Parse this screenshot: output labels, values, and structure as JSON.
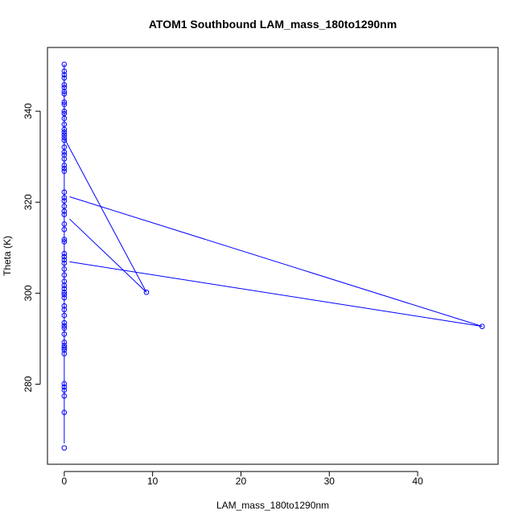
{
  "chart_data": {
    "type": "scatter",
    "title": "ATOM1 Southbound LAM_mass_180to1290nm",
    "xlabel": "LAM_mass_180to1290nm",
    "ylabel": "Theta (K)",
    "xlim": [
      -1.9,
      49.1
    ],
    "ylim": [
      262.4,
      354.0
    ],
    "xticks": [
      0,
      10,
      20,
      30,
      40
    ],
    "yticks": [
      280,
      300,
      320,
      340
    ],
    "grid": false,
    "legend": "none",
    "point_style": "open-circle",
    "colors": {
      "series": "#0000ff",
      "axis": "#000000",
      "background": "#ffffff"
    },
    "series": [
      {
        "values": [
          [
            0,
            266.0
          ],
          [
            0,
            273.8
          ],
          [
            0,
            277.4
          ],
          [
            0,
            278.7
          ],
          [
            0,
            279.4
          ],
          [
            0,
            280.1
          ],
          [
            0,
            286.7
          ],
          [
            0,
            287.5
          ],
          [
            0,
            288.0
          ],
          [
            0,
            288.5
          ],
          [
            0,
            289.2
          ],
          [
            0,
            291.0
          ],
          [
            0,
            292.3
          ],
          [
            0,
            292.8
          ],
          [
            0,
            293.5
          ],
          [
            0,
            295.1
          ],
          [
            0,
            296.4
          ],
          [
            0,
            297.2
          ],
          [
            0,
            299.0
          ],
          [
            0,
            299.7
          ],
          [
            0,
            300.2
          ],
          [
            0,
            301.0
          ],
          [
            0,
            301.7
          ],
          [
            0,
            302.6
          ],
          [
            0,
            304.0
          ],
          [
            0,
            305.3
          ],
          [
            0,
            306.6
          ],
          [
            0,
            307.3
          ],
          [
            0,
            308.0
          ],
          [
            0,
            308.7
          ],
          [
            0,
            311.3
          ],
          [
            0,
            311.8
          ],
          [
            0,
            314.0
          ],
          [
            0,
            315.2
          ],
          [
            0,
            317.3
          ],
          [
            0,
            318.0
          ],
          [
            0,
            319.1
          ],
          [
            0,
            320.3
          ],
          [
            0,
            321.0
          ],
          [
            0,
            322.2
          ],
          [
            0,
            326.8
          ],
          [
            0,
            327.4
          ],
          [
            0,
            328.1
          ],
          [
            0,
            329.5
          ],
          [
            0,
            330.4
          ],
          [
            0,
            331.0
          ],
          [
            0,
            332.1
          ],
          [
            0,
            333.6
          ],
          [
            0,
            334.2
          ],
          [
            0,
            334.8
          ],
          [
            0,
            335.4
          ],
          [
            0,
            336.0
          ],
          [
            0,
            337.1
          ],
          [
            0,
            338.4
          ],
          [
            0,
            339.5
          ],
          [
            0,
            340.0
          ],
          [
            0,
            341.5
          ],
          [
            0,
            342.0
          ],
          [
            0,
            343.8
          ],
          [
            0,
            344.3
          ],
          [
            0,
            345.2
          ],
          [
            0,
            345.8
          ],
          [
            0,
            347.3
          ],
          [
            0,
            348.0
          ],
          [
            0,
            348.8
          ],
          [
            0,
            350.3
          ],
          [
            9.3,
            300.2
          ],
          [
            47.3,
            292.7
          ]
        ]
      }
    ],
    "connecting_lines": [
      [
        [
          0,
          267.0
        ],
        [
          0,
          350.3
        ]
      ],
      [
        [
          0.1,
          333.7
        ],
        [
          9.3,
          300.2
        ]
      ],
      [
        [
          0.6,
          316.3
        ],
        [
          9.3,
          300.2
        ]
      ],
      [
        [
          0.6,
          321.2
        ],
        [
          47.3,
          292.7
        ]
      ],
      [
        [
          0.6,
          306.9
        ],
        [
          47.3,
          292.7
        ]
      ]
    ]
  }
}
